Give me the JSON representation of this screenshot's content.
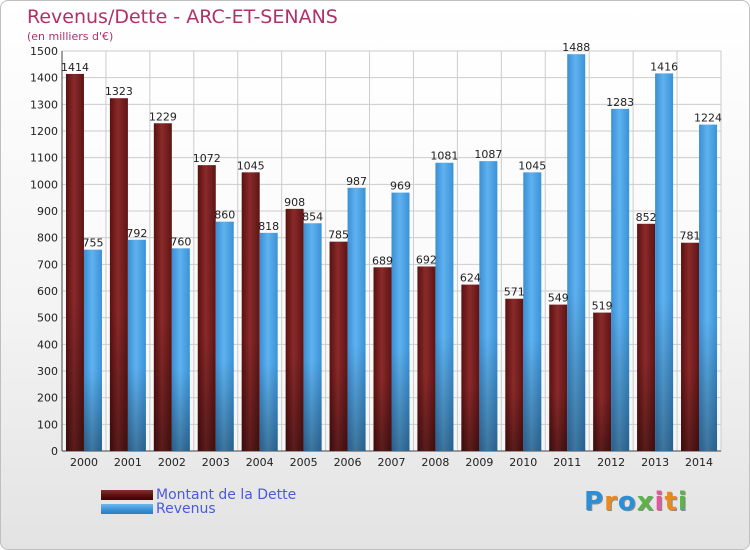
{
  "title": "Revenus/Dette - ARC-ET-SENANS",
  "subtitle": "(en milliers d'€)",
  "chart_data": {
    "type": "bar",
    "title": "Revenus/Dette - ARC-ET-SENANS",
    "subtitle": "(en milliers d'€)",
    "categories": [
      "2000",
      "2001",
      "2002",
      "2003",
      "2004",
      "2005",
      "2006",
      "2007",
      "2008",
      "2009",
      "2010",
      "2011",
      "2012",
      "2013",
      "2014"
    ],
    "series": [
      {
        "name": "Montant de la Dette",
        "color": "#7a1f1f",
        "values": [
          1414,
          1323,
          1229,
          1072,
          1045,
          908,
          785,
          689,
          692,
          624,
          571,
          549,
          519,
          852,
          781
        ]
      },
      {
        "name": "Revenus",
        "color": "#3f9ae0",
        "values": [
          755,
          792,
          760,
          860,
          818,
          854,
          987,
          969,
          1081,
          1087,
          1045,
          1488,
          1283,
          1416,
          1224
        ]
      }
    ],
    "ylim": [
      0,
      1500
    ],
    "yticks": [
      0,
      100,
      200,
      300,
      400,
      500,
      600,
      700,
      800,
      900,
      1000,
      1100,
      1200,
      1300,
      1400,
      1500
    ],
    "grid": true,
    "legend_position": "bottom-left"
  },
  "logo": {
    "text": "Proxiti",
    "letters": [
      "P",
      "r",
      "o",
      "x",
      "i",
      "t",
      "i"
    ],
    "colors": [
      "#2a8fd6",
      "#e98a1f",
      "#2a8fd6",
      "#5cb34a",
      "#e05a9a",
      "#e98a1f",
      "#5cb34a"
    ]
  }
}
